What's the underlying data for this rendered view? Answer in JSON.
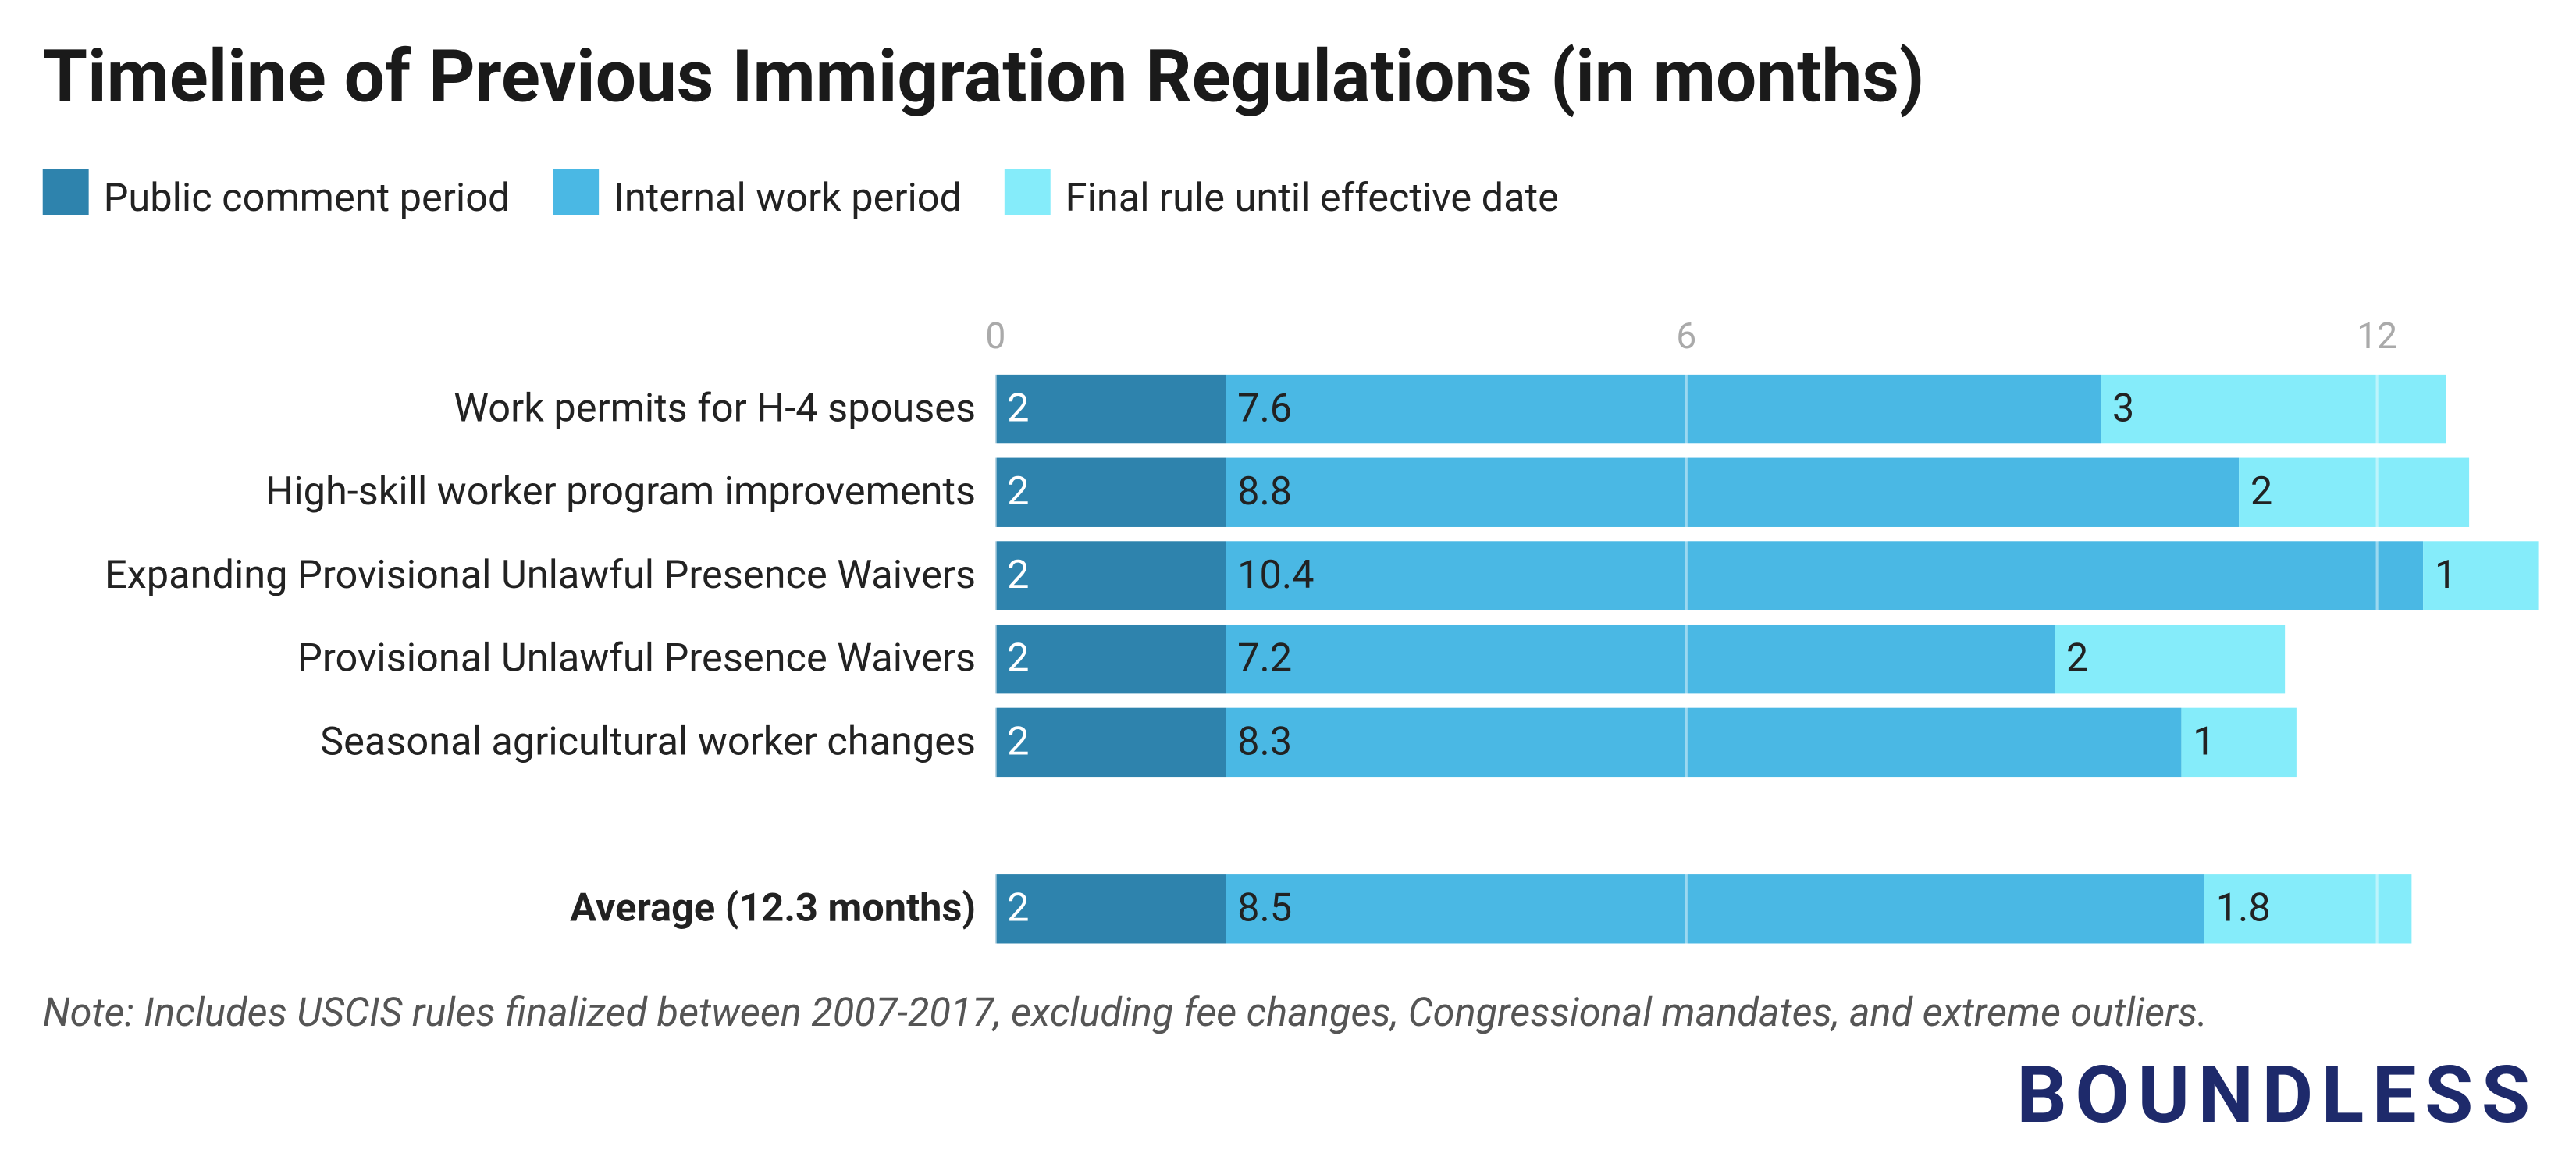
{
  "chart_data": {
    "type": "stacked-bar-horizontal",
    "title": "Timeline of Previous Immigration Regulations (in months)",
    "categories": [
      "Work permits for H-4 spouses",
      "High-skill worker program improvements",
      "Expanding Provisional Unlawful Presence Waivers",
      "Provisional Unlawful Presence Waivers",
      "Seasonal agricultural worker changes",
      null,
      "Average (12.3 months)"
    ],
    "series": [
      {
        "name": "Public comment period",
        "color": "#2e83ad",
        "values": [
          2,
          2,
          2,
          2,
          2,
          null,
          2
        ]
      },
      {
        "name": "Internal work period",
        "color": "#4ab8e4",
        "values": [
          7.6,
          8.8,
          10.4,
          7.2,
          8.3,
          null,
          8.5
        ]
      },
      {
        "name": "Final rule until effective date",
        "color": "#85ecfa",
        "values": [
          3,
          2,
          1,
          2,
          1,
          null,
          1.8
        ]
      }
    ],
    "xlim": [
      0,
      13.4
    ],
    "xticks": [
      0,
      6,
      12
    ],
    "grid": true,
    "note": "Note: Includes USCIS rules finalized between 2007-2017, excluding fee changes, Congressional mandates, and extreme outliers.",
    "logo": "BOUNDLESS"
  }
}
